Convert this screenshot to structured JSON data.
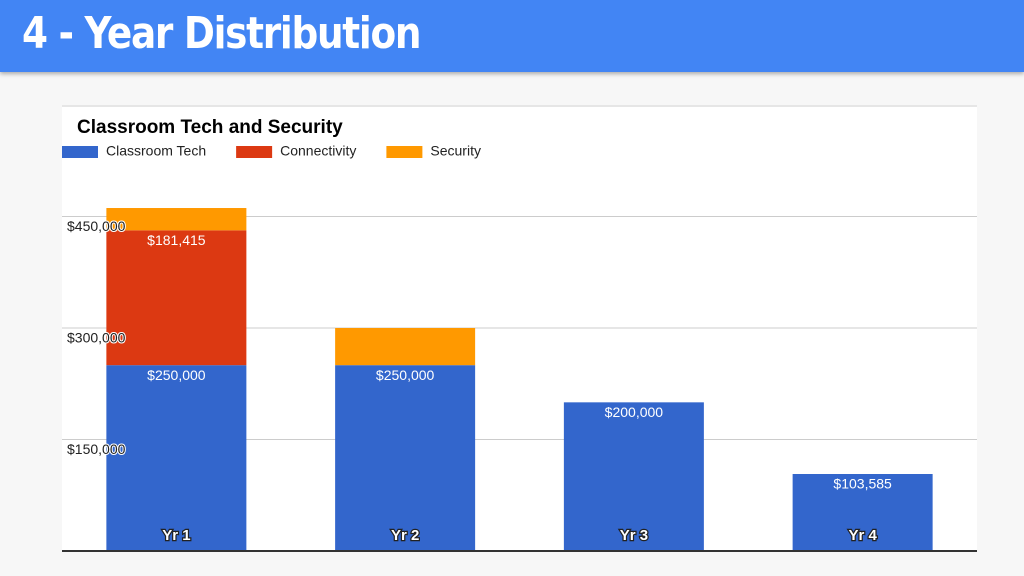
{
  "slide_title": "4 - Year Distribution",
  "chart_data": {
    "type": "stacked_bar",
    "title": "Classroom Tech and Security",
    "categories": [
      "Yr 1",
      "Yr 2",
      "Yr 3",
      "Yr 4"
    ],
    "series": [
      {
        "name": "Classroom Tech",
        "color": "#3366cc",
        "values": [
          250000,
          250000,
          200000,
          103585
        ],
        "value_labels": [
          "$250,000",
          "$250,000",
          "$200,000",
          "$103,585"
        ]
      },
      {
        "name": "Connectivity",
        "color": "#dc3912",
        "values": [
          181415,
          null,
          null,
          null
        ],
        "value_labels": [
          "$181,415",
          null,
          null,
          null
        ]
      },
      {
        "name": "Security",
        "color": "#ff9900",
        "values": [
          30000,
          50000,
          null,
          null
        ]
      }
    ],
    "ylim": [
      0,
      600000
    ],
    "yticks": [
      {
        "value": 150000,
        "label": "$150,000"
      },
      {
        "value": 300000,
        "label": "$300,000"
      },
      {
        "value": 450000,
        "label": "$450,000"
      }
    ],
    "grid": true,
    "legend": "top"
  }
}
